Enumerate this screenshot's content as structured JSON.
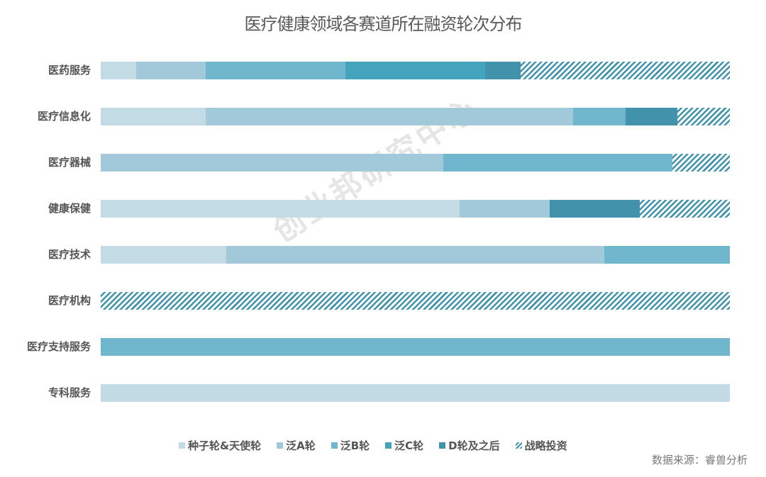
{
  "title": "医疗健康领域各赛道所在融资轮次分布",
  "watermark": "创业邦研究中心",
  "source": "数据来源：睿兽分析",
  "legend": [
    {
      "label": "种子轮&天使轮",
      "color": "#c2dbe4"
    },
    {
      "label": "泛A轮",
      "color": "#a2c9da"
    },
    {
      "label": "泛B轮",
      "color": "#70b6cd"
    },
    {
      "label": "泛C轮",
      "color": "#45a4bd"
    },
    {
      "label": "D轮及之后",
      "color": "#4192aa"
    },
    {
      "label": "战略投资",
      "color": "#3f93ab",
      "pattern": "diagonal-stripes"
    }
  ],
  "rows": [
    {
      "label": "医药服务"
    },
    {
      "label": "医疗信息化"
    },
    {
      "label": "医疗器械"
    },
    {
      "label": "健康保健"
    },
    {
      "label": "医疗技术"
    },
    {
      "label": "医疗机构"
    },
    {
      "label": "医疗支持服务"
    },
    {
      "label": "专科服务"
    }
  ],
  "chart_data": {
    "type": "bar",
    "orientation": "horizontal",
    "stacked": "percent",
    "title": "医疗健康领域各赛道所在融资轮次分布",
    "xlabel": "",
    "ylabel": "",
    "xlim": [
      0,
      100
    ],
    "grid": false,
    "legend_position": "bottom",
    "categories": [
      "医药服务",
      "医疗信息化",
      "医疗器械",
      "健康保健",
      "医疗技术",
      "医疗机构",
      "医疗支持服务",
      "专科服务"
    ],
    "series": [
      {
        "name": "种子轮&天使轮",
        "values": [
          5.6,
          16.7,
          0,
          57.1,
          20.0,
          0,
          0,
          100
        ]
      },
      {
        "name": "泛A轮",
        "values": [
          11.1,
          58.3,
          54.5,
          14.3,
          60.0,
          0,
          0,
          0
        ]
      },
      {
        "name": "泛B轮",
        "values": [
          22.2,
          8.3,
          36.4,
          0,
          20.0,
          0,
          100,
          0
        ]
      },
      {
        "name": "泛C轮",
        "values": [
          22.2,
          0,
          0,
          0,
          0,
          0,
          0,
          0
        ]
      },
      {
        "name": "D轮及之后",
        "values": [
          5.6,
          8.3,
          0,
          14.3,
          0,
          0,
          0,
          0
        ]
      },
      {
        "name": "战略投资",
        "values": [
          33.3,
          8.3,
          9.1,
          14.3,
          0,
          100,
          0,
          0
        ]
      }
    ],
    "source": "数据来源：睿兽分析"
  }
}
